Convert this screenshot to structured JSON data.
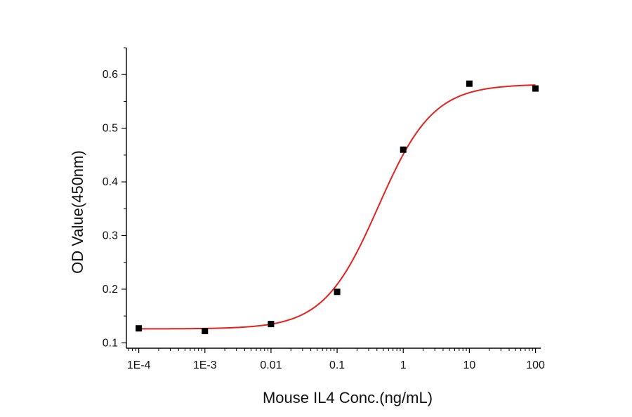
{
  "chart_data": {
    "type": "scatter",
    "title": "",
    "xlabel": "Mouse IL4 Conc.(ng/mL)",
    "ylabel": "OD Value(450nm)",
    "x_scale": "log",
    "xlim": [
      6.5e-05,
      120
    ],
    "ylim": [
      0.09,
      0.65
    ],
    "x_ticks": [
      0.0001,
      0.001,
      0.01,
      0.1,
      1,
      10,
      100
    ],
    "x_tick_labels": [
      "1E-4",
      "1E-3",
      "0.01",
      "0.1",
      "1",
      "10",
      "100"
    ],
    "y_ticks": [
      0.1,
      0.2,
      0.3,
      0.4,
      0.5,
      0.6
    ],
    "y_tick_labels": [
      "0.1",
      "0.2",
      "0.3",
      "0.4",
      "0.5",
      "0.6"
    ],
    "grid": false,
    "legend": "none",
    "series": [
      {
        "kind": "points",
        "marker": "square",
        "color": "#000000",
        "x": [
          0.0001,
          0.001,
          0.01,
          0.1,
          1,
          10,
          100
        ],
        "y": [
          0.127,
          0.122,
          0.135,
          0.195,
          0.46,
          0.583,
          0.574
        ]
      },
      {
        "kind": "fit",
        "model": "4PL",
        "color": "#e8201c",
        "params": {
          "bottom": 0.126,
          "top": 0.582,
          "ec50": 0.42,
          "hill": 1.05
        }
      }
    ]
  }
}
